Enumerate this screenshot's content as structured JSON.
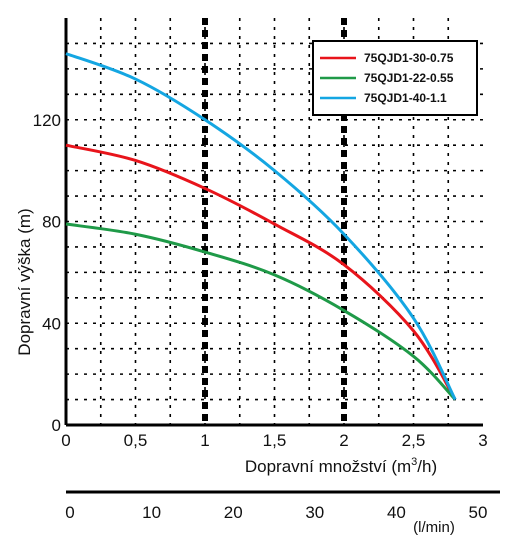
{
  "chart_data": {
    "type": "line",
    "title": "",
    "xlabel": "Dopravní množství (m",
    "xlabel_sup": "3",
    "xlabel_unit_close": "/h)",
    "ylabel": "Dopravní výška (m)",
    "xlim": [
      0,
      3
    ],
    "ylim": [
      0,
      160
    ],
    "x_ticks": [
      "0",
      "0,5",
      "1",
      "1,5",
      "2",
      "2,5",
      "3"
    ],
    "x_tick_values": [
      0,
      0.5,
      1,
      1.5,
      2,
      2.5,
      3
    ],
    "y_ticks": [
      "0",
      "40",
      "80",
      "120"
    ],
    "y_tick_values": [
      0,
      40,
      80,
      120
    ],
    "secondary_axis": {
      "label": "(l/min)",
      "ticks": [
        "0",
        "10",
        "20",
        "30",
        "40",
        "50"
      ],
      "tick_values": [
        0,
        10,
        20,
        30,
        40,
        50
      ]
    },
    "grid": true,
    "highlight_x": [
      1,
      2
    ],
    "legend_position": "top-right",
    "series": [
      {
        "name": "75QJD1-30-0.75",
        "color": "#e8141b",
        "x": [
          0,
          0.5,
          1,
          1.5,
          2,
          2.5,
          2.8
        ],
        "y": [
          110,
          104,
          93,
          79,
          63,
          37,
          10
        ]
      },
      {
        "name": "75QJD1-22-0.55",
        "color": "#1f9a48",
        "x": [
          0,
          0.5,
          1,
          1.5,
          2,
          2.5,
          2.8
        ],
        "y": [
          79,
          75,
          68,
          59,
          45,
          27,
          10
        ]
      },
      {
        "name": "75QJD1-40-1.1",
        "color": "#14a6e2",
        "x": [
          0,
          0.5,
          1,
          1.5,
          2,
          2.5,
          2.8
        ],
        "y": [
          146,
          136,
          120,
          100,
          75,
          42,
          10
        ]
      }
    ]
  }
}
